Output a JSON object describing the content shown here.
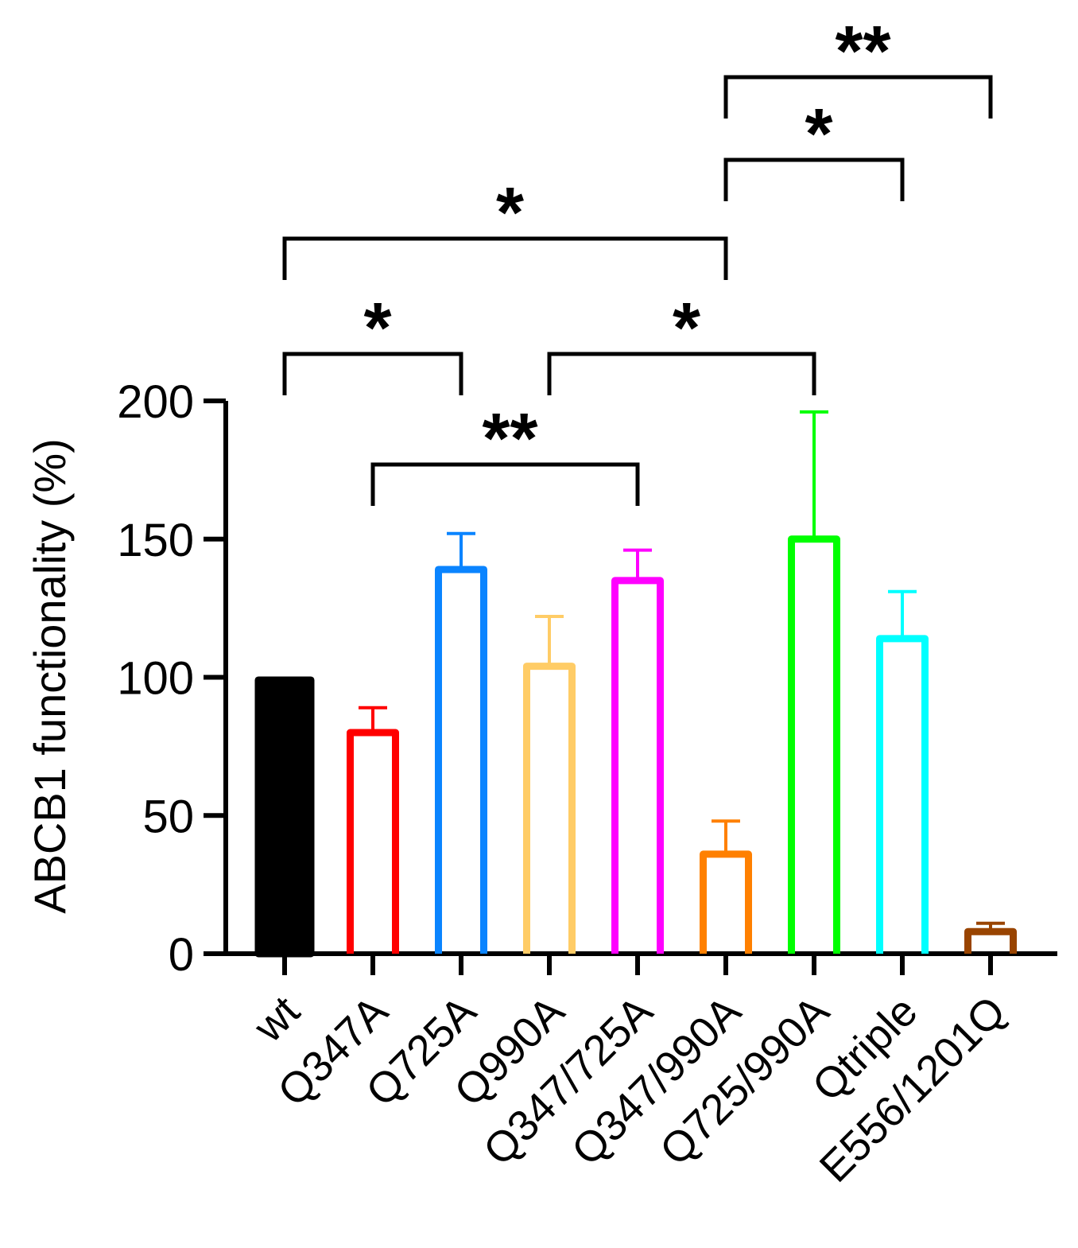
{
  "chart_data": {
    "type": "bar",
    "title": "",
    "xlabel": "",
    "ylabel": "ABCB1 functionality (%)",
    "ylim": [
      0,
      200
    ],
    "yticks": [
      0,
      50,
      100,
      150,
      200
    ],
    "categories": [
      "wt",
      "Q347A",
      "Q725A",
      "Q990A",
      "Q347/725A",
      "Q347/990A",
      "Q725/990A",
      "Qtriple",
      "E556/1201Q"
    ],
    "values": [
      99,
      80,
      139,
      104,
      135,
      36,
      150,
      114,
      8
    ],
    "errors": [
      0,
      9,
      13,
      18,
      11,
      12,
      46,
      17,
      3
    ],
    "colors": [
      "#000000",
      "#ff0000",
      "#0a84ff",
      "#ffcc66",
      "#ff00ff",
      "#ff8000",
      "#00ff00",
      "#00ffff",
      "#994400"
    ],
    "filled": [
      true,
      false,
      false,
      false,
      false,
      false,
      false,
      false,
      false
    ],
    "significance": [
      {
        "from": 1,
        "to": 4,
        "label": "**",
        "level": 1
      },
      {
        "from": 0,
        "to": 2,
        "label": "*",
        "level": 2
      },
      {
        "from": 3,
        "to": 6,
        "label": "*",
        "level": 2
      },
      {
        "from": 0,
        "to": 5,
        "label": "*",
        "level": 3
      },
      {
        "from": 5,
        "to": 7,
        "label": "*",
        "level": 4
      },
      {
        "from": 5,
        "to": 8,
        "label": "**",
        "level": 5
      }
    ]
  }
}
